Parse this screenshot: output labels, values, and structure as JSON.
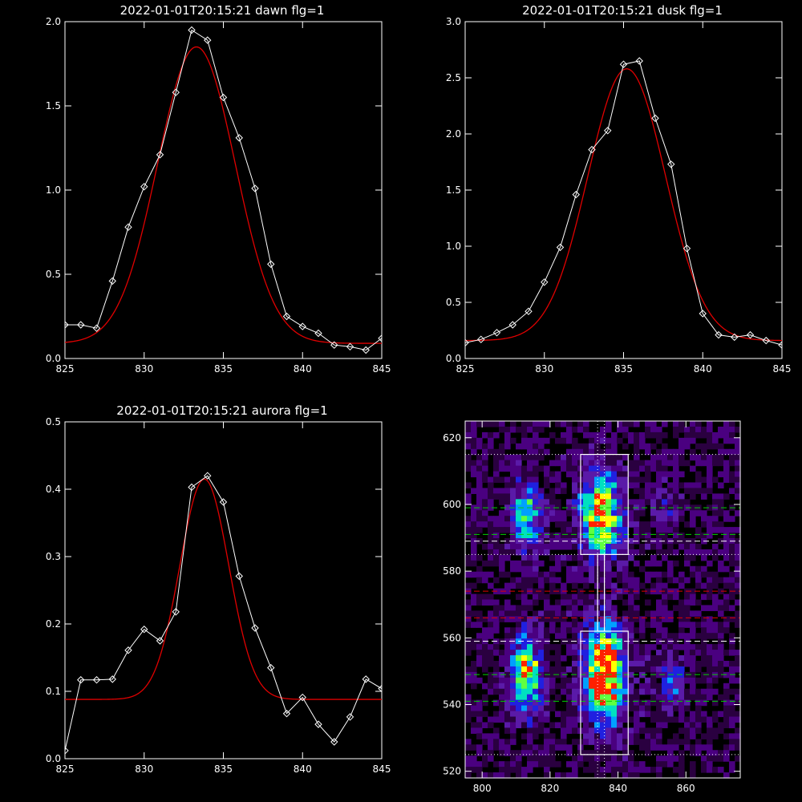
{
  "chart_data": [
    {
      "type": "line",
      "title": "2022-01-01T20:15:21 dawn flg=1",
      "xlim": [
        825,
        845
      ],
      "ylim": [
        0.0,
        2.0
      ],
      "xticks": [
        "825",
        "830",
        "835",
        "840",
        "845"
      ],
      "yticks": [
        "0.0",
        "0.5",
        "1.0",
        "1.5",
        "2.0"
      ],
      "series": [
        {
          "kind": "data-with-diamonds",
          "color": "#ffffff",
          "x": [
            825,
            826,
            827,
            828,
            829,
            830,
            831,
            832,
            833,
            834,
            835,
            836,
            837,
            838,
            839,
            840,
            841,
            842,
            843,
            844,
            845
          ],
          "y": [
            0.2,
            0.2,
            0.18,
            0.46,
            0.78,
            1.02,
            1.21,
            1.58,
            1.95,
            1.89,
            1.55,
            1.31,
            1.01,
            0.56,
            0.25,
            0.19,
            0.15,
            0.08,
            0.07,
            0.05,
            0.12
          ]
        },
        {
          "kind": "gaussian-fit",
          "color": "#e00000",
          "amplitude": 1.76,
          "center": 833.3,
          "sigma": 2.45,
          "offset": 0.09
        }
      ]
    },
    {
      "type": "line",
      "title": "2022-01-01T20:15:21 dusk flg=1",
      "xlim": [
        825,
        845
      ],
      "ylim": [
        0.0,
        3.0
      ],
      "xticks": [
        "825",
        "830",
        "835",
        "840",
        "845"
      ],
      "yticks": [
        "0.0",
        "0.5",
        "1.0",
        "1.5",
        "2.0",
        "2.5",
        "3.0"
      ],
      "series": [
        {
          "kind": "data-with-diamonds",
          "color": "#ffffff",
          "x": [
            825,
            826,
            827,
            828,
            829,
            830,
            831,
            832,
            833,
            834,
            835,
            836,
            837,
            838,
            839,
            840,
            841,
            842,
            843,
            844,
            845
          ],
          "y": [
            0.14,
            0.17,
            0.23,
            0.3,
            0.42,
            0.68,
            0.99,
            1.46,
            1.86,
            2.03,
            2.62,
            2.65,
            2.14,
            1.73,
            0.98,
            0.4,
            0.21,
            0.19,
            0.21,
            0.16,
            0.12
          ]
        },
        {
          "kind": "gaussian-fit",
          "color": "#e00000",
          "amplitude": 2.42,
          "center": 835.2,
          "sigma": 2.45,
          "offset": 0.16
        }
      ]
    },
    {
      "type": "line",
      "title": "2022-01-01T20:15:21 aurora flg=1",
      "xlim": [
        825,
        845
      ],
      "ylim": [
        0.0,
        0.5
      ],
      "xticks": [
        "825",
        "830",
        "835",
        "840",
        "845"
      ],
      "yticks": [
        "0.0",
        "0.1",
        "0.2",
        "0.3",
        "0.4",
        "0.5"
      ],
      "series": [
        {
          "kind": "data-with-diamonds",
          "color": "#ffffff",
          "x": [
            825,
            826,
            827,
            828,
            829,
            830,
            831,
            832,
            833,
            834,
            835,
            836,
            837,
            838,
            839,
            840,
            841,
            842,
            843,
            844,
            845
          ],
          "y": [
            0.012,
            0.117,
            0.117,
            0.118,
            0.161,
            0.192,
            0.175,
            0.218,
            0.403,
            0.42,
            0.381,
            0.271,
            0.194,
            0.135,
            0.067,
            0.091,
            0.051,
            0.025,
            0.062,
            0.118,
            0.104
          ]
        },
        {
          "kind": "gaussian-fit",
          "color": "#e00000",
          "amplitude": 0.327,
          "center": 833.8,
          "sigma": 1.55,
          "offset": 0.088
        }
      ]
    },
    {
      "type": "heatmap",
      "title": "",
      "xlim": [
        795,
        876
      ],
      "ylim": [
        518,
        625
      ],
      "xticks": [
        "800",
        "820",
        "840",
        "860"
      ],
      "yticks": [
        "520",
        "540",
        "560",
        "580",
        "600",
        "620"
      ],
      "colormap": [
        "#000000",
        "#2a0040",
        "#4a0080",
        "#5a1aa8",
        "#2020e0",
        "#00a0ff",
        "#00e0c0",
        "#60ff40",
        "#ffff00",
        "#ff2000"
      ],
      "blobs": [
        {
          "x": 813,
          "y": 596,
          "sx": 3.0,
          "sy": 7.0,
          "peak": 0.55
        },
        {
          "x": 835,
          "y": 597,
          "sx": 4.0,
          "sy": 8.0,
          "peak": 0.85
        },
        {
          "x": 813,
          "y": 549,
          "sx": 3.0,
          "sy": 8.0,
          "peak": 0.75
        },
        {
          "x": 836,
          "y": 549,
          "sx": 4.0,
          "sy": 10.0,
          "peak": 1.0
        },
        {
          "x": 856,
          "y": 548,
          "sx": 2.5,
          "sy": 5.0,
          "peak": 0.35
        },
        {
          "x": 854,
          "y": 599,
          "sx": 2.5,
          "sy": 4.0,
          "peak": 0.25
        }
      ],
      "boxes": [
        {
          "x0": 829,
          "x1": 843,
          "y0": 585,
          "y1": 615,
          "color": "#ffffff"
        },
        {
          "x0": 829,
          "x1": 843,
          "y0": 525,
          "y1": 562,
          "color": "#ffffff"
        },
        {
          "x0": 834,
          "x1": 836,
          "y0": 562,
          "y1": 585,
          "color": "#ffffff"
        }
      ],
      "vlines": [
        {
          "x": 834,
          "style": "dotted",
          "color": "#ffffff"
        },
        {
          "x": 836,
          "style": "dotted",
          "color": "#ffffff"
        }
      ],
      "hlines": [
        {
          "y": 615,
          "style": "dotted",
          "color": "#ffffff"
        },
        {
          "y": 599,
          "style": "dashed",
          "color": "#00d000"
        },
        {
          "y": 591,
          "style": "dashed",
          "color": "#00d000"
        },
        {
          "y": 589,
          "style": "dashed",
          "color": "#ffffff"
        },
        {
          "y": 585,
          "style": "dotted",
          "color": "#ffffff"
        },
        {
          "y": 574,
          "style": "dashed",
          "color": "#e00000"
        },
        {
          "y": 566,
          "style": "dashed",
          "color": "#e00000"
        },
        {
          "y": 559,
          "style": "dashed",
          "color": "#ffffff"
        },
        {
          "y": 549,
          "style": "dashed",
          "color": "#00d000"
        },
        {
          "y": 541,
          "style": "dashed",
          "color": "#00d000"
        },
        {
          "y": 525,
          "style": "dotted",
          "color": "#ffffff"
        }
      ]
    }
  ]
}
